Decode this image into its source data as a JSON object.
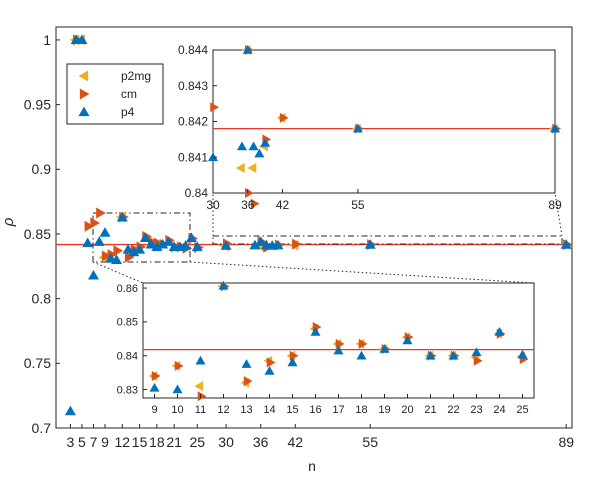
{
  "chart_data": [
    {
      "type": "scatter",
      "name": "main",
      "xlabel": "n",
      "ylabel": "ρ",
      "xlim": [
        0.5,
        90
      ],
      "ylim": [
        0.7,
        1.01
      ],
      "xticks": [
        3,
        5,
        7,
        9,
        12,
        15,
        18,
        21,
        25,
        30,
        36,
        42,
        55,
        89
      ],
      "yticks": [
        0.7,
        0.75,
        0.8,
        0.85,
        0.9,
        0.95,
        1
      ],
      "ytick_labels": [
        "0.7",
        "0.75",
        "0.8",
        "0.85",
        "0.9",
        "0.95",
        "1"
      ],
      "reference_line": 0.8418,
      "legend": {
        "position": "top-left",
        "entries": [
          "p2mg",
          "cm",
          "p4"
        ]
      },
      "series": [
        {
          "name": "p2mg",
          "marker": "triangle-left",
          "color": "#EDB120",
          "points": [
            [
              4,
              1
            ],
            [
              5,
              1
            ],
            [
              9,
              0.8318
            ],
            [
              12,
              0.8631
            ],
            [
              30,
              0.8407
            ],
            [
              36,
              0.8407
            ],
            [
              42,
              0.8413
            ]
          ]
        },
        {
          "name": "cm",
          "marker": "triangle-right",
          "color": "#D95319",
          "points": [
            [
              4,
              1
            ],
            [
              6,
              0.856
            ],
            [
              7,
              0.8585
            ],
            [
              8,
              0.8662
            ],
            [
              9,
              0.833
            ],
            [
              10,
              0.834
            ],
            [
              11,
              0.837
            ],
            [
              12,
              0.8631
            ],
            [
              13,
              0.832
            ],
            [
              14,
              0.838
            ],
            [
              15,
              0.84
            ],
            [
              16,
              0.848
            ],
            [
              17,
              0.844
            ],
            [
              18,
              0.843
            ],
            [
              19,
              0.842
            ],
            [
              20,
              0.845
            ],
            [
              21,
              0.84
            ],
            [
              22,
              0.84
            ],
            [
              23,
              0.839
            ],
            [
              24,
              0.8465
            ],
            [
              25,
              0.8395
            ],
            [
              30,
              0.8424
            ],
            [
              36,
              0.844
            ],
            [
              37,
              0.8397
            ],
            [
              39,
              0.8415
            ],
            [
              42,
              0.8421
            ],
            [
              55,
              0.8418
            ],
            [
              89,
              0.8418
            ]
          ]
        },
        {
          "name": "p4",
          "marker": "triangle-up",
          "color": "#0072BD",
          "points": [
            [
              3,
              0.713
            ],
            [
              4,
              1
            ],
            [
              5,
              1
            ],
            [
              6,
              0.843
            ],
            [
              7,
              0.818
            ],
            [
              8,
              0.844
            ],
            [
              9,
              0.851
            ],
            [
              10,
              0.831
            ],
            [
              11,
              0.83
            ],
            [
              12,
              0.8628
            ],
            [
              13,
              0.838
            ],
            [
              14,
              0.836
            ],
            [
              15,
              0.838
            ],
            [
              16,
              0.847
            ],
            [
              17,
              0.842
            ],
            [
              18,
              0.84
            ],
            [
              19,
              0.842
            ],
            [
              20,
              0.844
            ],
            [
              21,
              0.84
            ],
            [
              22,
              0.84
            ],
            [
              23,
              0.841
            ],
            [
              24,
              0.847
            ],
            [
              25,
              0.84
            ],
            [
              30,
              0.841
            ],
            [
              35,
              0.8413
            ],
            [
              36,
              0.844
            ],
            [
              37,
              0.8413
            ],
            [
              38,
              0.841
            ],
            [
              39,
              0.8413
            ],
            [
              55,
              0.8418
            ],
            [
              89,
              0.8418
            ]
          ]
        }
      ]
    },
    {
      "type": "scatter",
      "name": "inset-top",
      "xlim": [
        30,
        89
      ],
      "ylim": [
        0.84,
        0.844
      ],
      "xticks": [
        30,
        36,
        42,
        55,
        89
      ],
      "yticks": [
        0.84,
        0.841,
        0.842,
        0.843,
        0.844
      ],
      "ytick_labels": [
        "0.84",
        "0.841",
        "0.842",
        "0.843",
        "0.844"
      ],
      "reference_line": 0.8418,
      "series": [
        {
          "name": "p2mg",
          "points": [
            [
              35,
              0.8407
            ],
            [
              36,
              0.844
            ],
            [
              37,
              0.8407
            ],
            [
              39,
              0.8413
            ],
            [
              42,
              0.8421
            ],
            [
              55,
              0.8418
            ],
            [
              89,
              0.8418
            ]
          ]
        },
        {
          "name": "cm",
          "points": [
            [
              30,
              0.8424
            ],
            [
              36,
              0.844
            ],
            [
              36,
              0.84
            ],
            [
              37,
              0.8397
            ],
            [
              39,
              0.8415
            ],
            [
              42,
              0.8421
            ],
            [
              55,
              0.8418
            ],
            [
              89,
              0.8418
            ]
          ]
        },
        {
          "name": "p4",
          "points": [
            [
              30,
              0.841
            ],
            [
              35,
              0.8413
            ],
            [
              36,
              0.844
            ],
            [
              37,
              0.8413
            ],
            [
              38,
              0.8411
            ],
            [
              39,
              0.8414
            ],
            [
              55,
              0.8418
            ],
            [
              89,
              0.8418
            ]
          ]
        }
      ]
    },
    {
      "type": "scatter",
      "name": "inset-bottom",
      "xlim": [
        8.5,
        25.5
      ],
      "ylim": [
        0.8275,
        0.8615
      ],
      "xticks": [
        9,
        10,
        11,
        12,
        13,
        14,
        15,
        16,
        17,
        18,
        19,
        20,
        21,
        22,
        23,
        24,
        25
      ],
      "yticks": [
        0.83,
        0.84,
        0.85,
        0.86
      ],
      "ytick_labels": [
        "0.83",
        "0.84",
        "0.85",
        "0.86"
      ],
      "reference_line": 0.8418,
      "series": [
        {
          "name": "p2mg",
          "points": [
            [
              9,
              0.834
            ],
            [
              10,
              0.837
            ],
            [
              11,
              0.831
            ],
            [
              12,
              0.8605
            ],
            [
              13,
              0.832
            ],
            [
              14,
              0.8385
            ],
            [
              15,
              0.84
            ],
            [
              16,
              0.848
            ],
            [
              17,
              0.8435
            ],
            [
              18,
              0.8435
            ],
            [
              19,
              0.842
            ],
            [
              20,
              0.8455
            ],
            [
              21,
              0.84
            ],
            [
              22,
              0.84
            ],
            [
              23,
              0.8395
            ],
            [
              24,
              0.8465
            ],
            [
              25,
              0.8397
            ]
          ]
        },
        {
          "name": "cm",
          "points": [
            [
              9,
              0.834
            ],
            [
              10,
              0.837
            ],
            [
              11,
              0.828
            ],
            [
              12,
              0.8605
            ],
            [
              13,
              0.8325
            ],
            [
              14,
              0.838
            ],
            [
              15,
              0.84
            ],
            [
              16,
              0.8485
            ],
            [
              17,
              0.8435
            ],
            [
              18,
              0.8435
            ],
            [
              19,
              0.842
            ],
            [
              20,
              0.8455
            ],
            [
              21,
              0.84
            ],
            [
              22,
              0.84
            ],
            [
              23,
              0.8385
            ],
            [
              24,
              0.8465
            ],
            [
              25,
              0.839
            ]
          ]
        },
        {
          "name": "p4",
          "points": [
            [
              9,
              0.8305
            ],
            [
              10,
              0.83
            ],
            [
              11,
              0.8385
            ],
            [
              12,
              0.8607
            ],
            [
              13,
              0.8375
            ],
            [
              14,
              0.8355
            ],
            [
              15,
              0.838
            ],
            [
              16,
              0.847
            ],
            [
              17,
              0.8415
            ],
            [
              18,
              0.84
            ],
            [
              19,
              0.842
            ],
            [
              20,
              0.8445
            ],
            [
              21,
              0.84
            ],
            [
              22,
              0.84
            ],
            [
              23,
              0.841
            ],
            [
              24,
              0.847
            ],
            [
              25,
              0.8403
            ]
          ]
        }
      ]
    }
  ]
}
